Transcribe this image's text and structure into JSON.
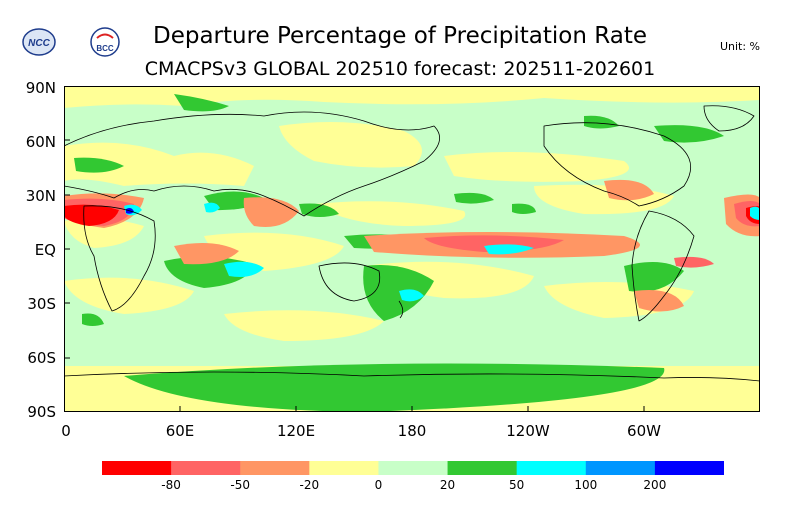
{
  "title": "Departure Percentage of Precipitation Rate",
  "subtitle": "CMACPSv3 GLOBAL 202510 forecast: 202511-202601",
  "unit": "Unit:  %",
  "logos": {
    "left": "NCC",
    "right": "BCC"
  },
  "y_axis": [
    "90N",
    "60N",
    "30N",
    "EQ",
    "30S",
    "60S",
    "90S"
  ],
  "x_axis": [
    "0",
    "60E",
    "120E",
    "180",
    "120W",
    "60W"
  ],
  "colorbar": {
    "colors": [
      "#ff0000",
      "#ff6464",
      "#ff9664",
      "#ffff96",
      "#c8ffc8",
      "#32c832",
      "#00ffff",
      "#0096ff",
      "#0000ff"
    ],
    "labels": [
      "-80",
      "-50",
      "-20",
      "0",
      "20",
      "50",
      "100",
      "200"
    ]
  },
  "map_colors": {
    "background": "#c8ffc8",
    "dry_light": "#ffff96",
    "dry_mid": "#ff9664",
    "dry_strong": "#ff6464",
    "dry_extreme": "#ff0000",
    "wet": "#32c832",
    "wet_strong": "#00ffff",
    "wet_extreme": "#0000ff",
    "coastline": "#000000"
  }
}
